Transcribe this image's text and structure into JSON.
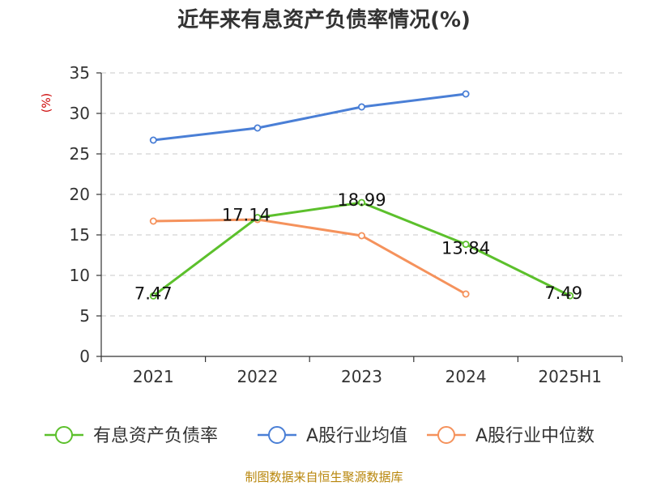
{
  "chart_data": {
    "type": "line",
    "title": "近年来有息资产负债率情况(%)",
    "unit_label": "(%)",
    "categories": [
      "2021",
      "2022",
      "2023",
      "2024",
      "2025H1"
    ],
    "ylim": [
      0,
      35
    ],
    "yticks": [
      0,
      5,
      10,
      15,
      20,
      25,
      30,
      35
    ],
    "grid": true,
    "legend_position": "bottom",
    "series": [
      {
        "name": "有息资产负债率",
        "color": "#5cc02c",
        "values": [
          7.47,
          17.14,
          18.99,
          13.84,
          7.49
        ],
        "labels": [
          "7.47",
          "17.14",
          "18.99",
          "13.84",
          "7.49"
        ]
      },
      {
        "name": "A股行业均值",
        "color": "#4a7fd6",
        "values": [
          26.7,
          28.2,
          30.8,
          32.4,
          null
        ]
      },
      {
        "name": "A股行业中位数",
        "color": "#f5925c",
        "values": [
          16.7,
          16.9,
          14.9,
          7.7,
          null
        ]
      }
    ]
  },
  "source": "制图数据来自恒生聚源数据库"
}
